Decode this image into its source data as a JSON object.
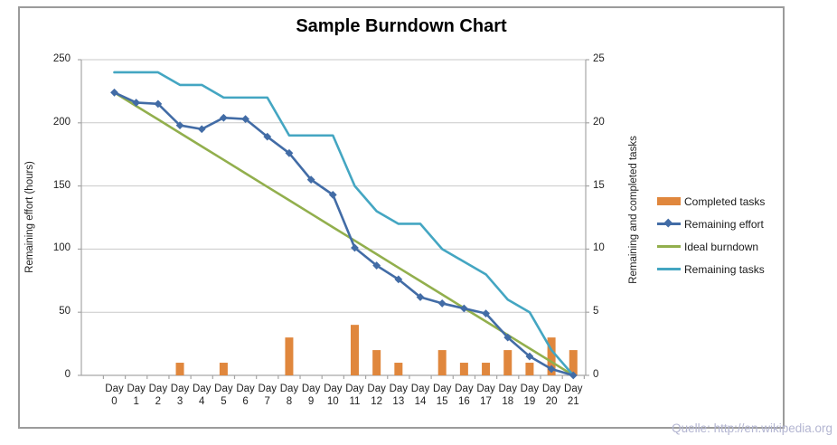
{
  "title": "Sample Burndown Chart",
  "source_note": "Quelle: http://en.wikipedia.org",
  "left_axis": {
    "title": "Remaining effort (hours)",
    "ticks": [
      250,
      200,
      150,
      100,
      50,
      0
    ],
    "ylim": [
      0,
      250
    ]
  },
  "right_axis": {
    "title": "Remaining and completed tasks",
    "ticks": [
      25,
      20,
      15,
      10,
      5,
      0
    ],
    "ylim": [
      0,
      25
    ]
  },
  "x_axis": {
    "label_prefix": "Day",
    "days": [
      0,
      1,
      2,
      3,
      4,
      5,
      6,
      7,
      8,
      9,
      10,
      11,
      12,
      13,
      14,
      15,
      16,
      17,
      18,
      19,
      20,
      21
    ]
  },
  "legend": [
    {
      "label": "Completed tasks",
      "swatch": "bar",
      "color": "#e0873d"
    },
    {
      "label": "Remaining effort",
      "swatch": "line-marker",
      "color": "#426ca6"
    },
    {
      "label": "Ideal burndown",
      "swatch": "line",
      "color": "#92af4d"
    },
    {
      "label": "Remaining tasks",
      "swatch": "line",
      "color": "#44a6c2"
    }
  ],
  "colors": {
    "bar_orange": "#e0873d",
    "effort_blue": "#426ca6",
    "ideal_green": "#92af4d",
    "tasks_teal": "#44a6c2",
    "gridline": "#c9c9c9",
    "axis_line": "#a6a6a6"
  },
  "chart_data": {
    "type": "bar",
    "subtype": "combo bar + line, dual axis, horizontal grid only, legend right",
    "title": "Sample Burndown Chart",
    "categories": [
      "Day 0",
      "Day 1",
      "Day 2",
      "Day 3",
      "Day 4",
      "Day 5",
      "Day 6",
      "Day 7",
      "Day 8",
      "Day 9",
      "Day 10",
      "Day 11",
      "Day 12",
      "Day 13",
      "Day 14",
      "Day 15",
      "Day 16",
      "Day 17",
      "Day 18",
      "Day 19",
      "Day 20",
      "Day 21"
    ],
    "left_ylabel": "Remaining effort (hours)",
    "right_ylabel": "Remaining and completed tasks",
    "left_ylim": [
      0,
      250
    ],
    "right_ylim": [
      0,
      25
    ],
    "series": [
      {
        "name": "Completed tasks",
        "type": "bar",
        "axis": "right",
        "color": "#e0873d",
        "values": [
          0,
          0,
          0,
          1,
          0,
          1,
          0,
          0,
          3,
          0,
          0,
          4,
          2,
          1,
          0,
          2,
          1,
          1,
          2,
          1,
          3,
          2
        ]
      },
      {
        "name": "Remaining effort",
        "type": "line",
        "marker": "diamond",
        "axis": "left",
        "color": "#426ca6",
        "values": [
          224,
          216,
          215,
          198,
          195,
          204,
          203,
          189,
          176,
          155,
          143,
          101,
          87,
          76,
          62,
          57,
          53,
          49,
          30,
          15,
          5,
          0
        ]
      },
      {
        "name": "Ideal burndown",
        "type": "line",
        "axis": "left",
        "color": "#92af4d",
        "values": [
          224,
          213.3,
          202.7,
          192,
          181.3,
          170.7,
          160,
          149.3,
          138.7,
          128,
          117.3,
          106.7,
          96,
          85.3,
          74.7,
          64,
          53.3,
          42.7,
          32,
          21.3,
          10.7,
          0
        ]
      },
      {
        "name": "Remaining tasks",
        "type": "line",
        "axis": "right",
        "color": "#44a6c2",
        "values": [
          24,
          24,
          24,
          23,
          23,
          22,
          22,
          22,
          19,
          19,
          19,
          15,
          13,
          12,
          12,
          10,
          9,
          8,
          6,
          5,
          2,
          0
        ]
      }
    ]
  }
}
